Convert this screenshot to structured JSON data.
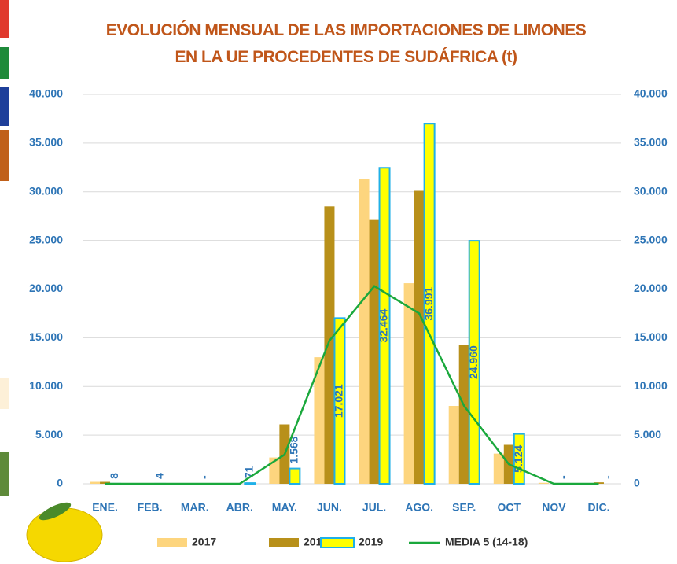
{
  "chart_data": {
    "type": "bar",
    "title": "EVOLUCIÓN MENSUAL DE LAS IMPORTACIONES DE LIMONES EN LA UE PROCEDENTES DE SUDÁFRICA (t)",
    "categories": [
      "ENE.",
      "FEB.",
      "MAR.",
      "ABR.",
      "MAY.",
      "JUN.",
      "JUL.",
      "AGO.",
      "SEP.",
      "OCT",
      "NOV",
      "DIC."
    ],
    "series": [
      {
        "name": "2017",
        "color": "#fdd57e",
        "values": [
          200,
          0,
          0,
          0,
          2700,
          13000,
          31300,
          20600,
          8000,
          3100,
          100,
          0
        ]
      },
      {
        "name": "2018",
        "color": "#b8901a",
        "values": [
          200,
          0,
          0,
          0,
          6100,
          28500,
          27100,
          30100,
          14300,
          4000,
          0,
          150
        ]
      },
      {
        "name": "2019",
        "color": "#ffff00",
        "edgecolor": "#1fb0e8",
        "values": [
          8,
          4,
          null,
          71,
          1568,
          17021,
          32464,
          36991,
          24960,
          5124,
          null,
          null
        ],
        "value_labels": [
          "8",
          "4",
          "-",
          "71",
          "1.568",
          "17.021",
          "32.464",
          "36.991",
          "24.960",
          "5.124",
          "-",
          "-"
        ]
      },
      {
        "name": "MEDIA 5 (14-18)",
        "type": "line",
        "color": "#1aa83c",
        "values": [
          0,
          0,
          0,
          0,
          3000,
          14700,
          20300,
          17500,
          8000,
          2000,
          0,
          0
        ]
      }
    ],
    "ylim": [
      0,
      40000
    ],
    "yticks": [
      0,
      {
        "value": 5000,
        "label": "5.000"
      },
      {
        "value": 10000,
        "label": "10.000"
      },
      {
        "value": 15000,
        "label": "15.000"
      },
      {
        "value": 20000,
        "label": "20.000"
      },
      {
        "value": 25000,
        "label": "25.000"
      },
      {
        "value": 30000,
        "label": "30.000"
      },
      {
        "value": 35000,
        "label": "35.000"
      },
      {
        "value": 40000,
        "label": "40.000"
      }
    ],
    "y2lim": [
      0,
      40000
    ],
    "y2ticks": [
      0,
      {
        "value": 5000,
        "label": "5.000"
      },
      {
        "value": 10000,
        "label": "10.000"
      },
      {
        "value": 15000,
        "label": "15.000"
      },
      {
        "value": 20000,
        "label": "20.000"
      },
      {
        "value": 25000,
        "label": "25.000"
      },
      {
        "value": 30000,
        "label": "30.000"
      },
      {
        "value": 35000,
        "label": "35.000"
      },
      {
        "value": 40000,
        "label": "40.000"
      }
    ],
    "grid": true,
    "legend": "bottom"
  }
}
